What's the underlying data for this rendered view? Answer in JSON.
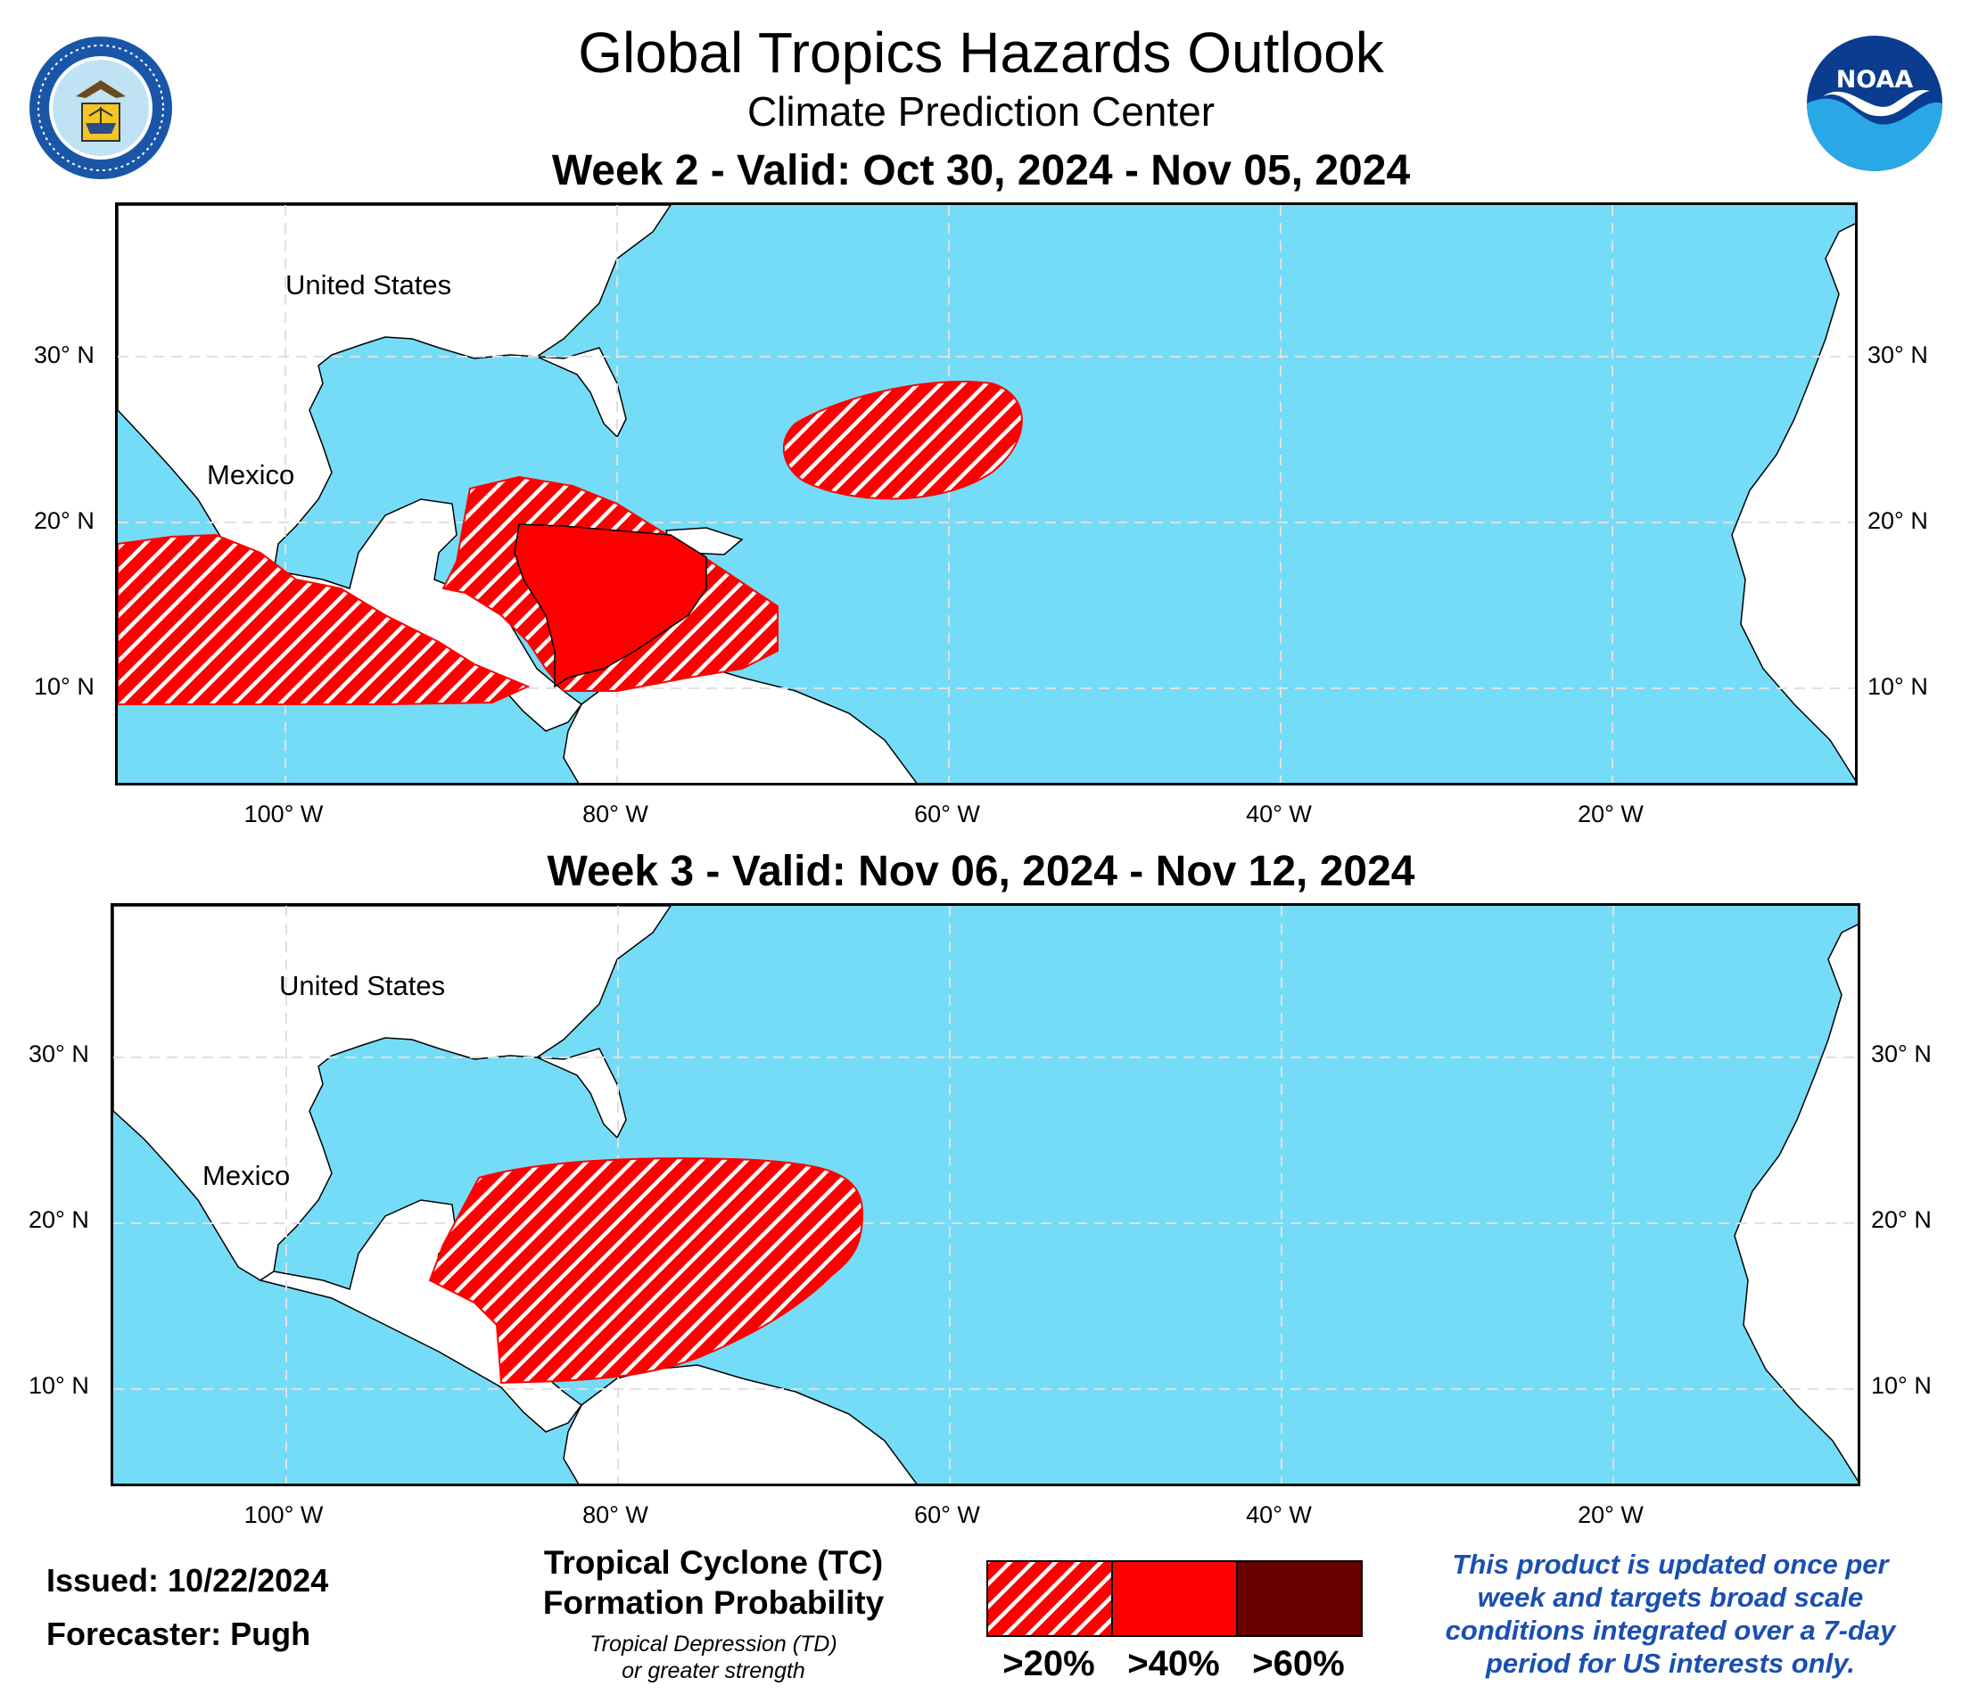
{
  "header": {
    "title": "Global Tropics Hazards Outlook",
    "subtitle": "Climate Prediction Center"
  },
  "logos": {
    "left": {
      "icon": "doc-seal-icon",
      "text": "DEPARTMENT OF COMMERCE · UNITED STATES OF AMERICA"
    },
    "right": {
      "icon": "noaa-logo-icon",
      "text": "NOAA"
    }
  },
  "maps": [
    {
      "title": "Week 2 - Valid: Oct 30, 2024 - Nov 05, 2024",
      "lat_labels": [
        "30° N",
        "20° N",
        "10° N"
      ],
      "lon_labels": [
        "100° W",
        "80° W",
        "60° W",
        "40° W",
        "20° W"
      ],
      "places": [
        "United States",
        "Mexico"
      ],
      "hazards": [
        {
          "probability": ">40%",
          "region": "western Caribbean"
        },
        {
          "probability": ">20%",
          "region": "Caribbean surrounding area"
        },
        {
          "probability": ">20%",
          "region": "eastern Pacific off southern Mexico"
        },
        {
          "probability": ">20%",
          "region": "western Atlantic northeast of the Bahamas"
        }
      ]
    },
    {
      "title": "Week 3 - Valid: Nov 06, 2024 - Nov 12, 2024",
      "lat_labels": [
        "30° N",
        "20° N",
        "10° N"
      ],
      "lon_labels": [
        "100° W",
        "80° W",
        "60° W",
        "40° W",
        "20° W"
      ],
      "places": [
        "United States",
        "Mexico"
      ],
      "hazards": [
        {
          "probability": ">20%",
          "region": "Caribbean Sea"
        }
      ]
    }
  ],
  "footer": {
    "issued": "Issued: 10/22/2024",
    "forecaster": "Forecaster: Pugh",
    "legend_heading_1": "Tropical Cyclone (TC)",
    "legend_heading_2": "Formation Probability",
    "legend_sub_1": "Tropical Depression (TD)",
    "legend_sub_2": "or greater strength",
    "legend": [
      {
        "label": ">20%",
        "color": "#ff0000",
        "pattern": "hatched"
      },
      {
        "label": ">40%",
        "color": "#ff0000",
        "pattern": "solid"
      },
      {
        "label": ">60%",
        "color": "#6b0000",
        "pattern": "solid"
      }
    ],
    "note_lines": [
      "This product is updated once per",
      "week and targets broad scale",
      "conditions integrated over a 7-day",
      "period for US interests only."
    ]
  },
  "colors": {
    "ocean": "#75dcf7",
    "land": "#ffffff",
    "hazard": "#ff0000",
    "note_text": "#1a4fb0"
  }
}
